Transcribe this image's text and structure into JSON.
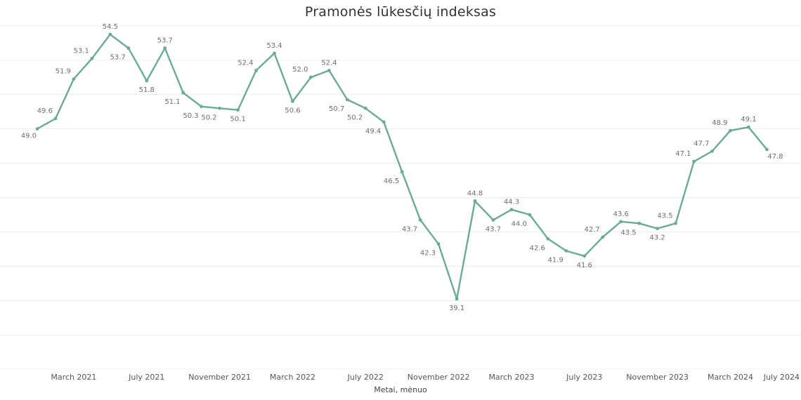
{
  "chart_data": {
    "type": "line",
    "title": "Pramonės lūkesčių indeksas",
    "xlabel": "Metai, mėnuo",
    "ylabel": "",
    "grid": true,
    "legend": "none",
    "line_color": "#6aaa96",
    "ylim": [
      37,
      56
    ],
    "x": [
      "2021-01",
      "2021-02",
      "2021-03",
      "2021-04",
      "2021-05",
      "2021-06",
      "2021-07",
      "2021-08",
      "2021-09",
      "2021-10",
      "2021-11",
      "2021-12",
      "2022-01",
      "2022-02",
      "2022-03",
      "2022-04",
      "2022-05",
      "2022-06",
      "2022-07",
      "2022-08",
      "2022-09",
      "2022-10",
      "2022-11",
      "2022-12",
      "2023-01",
      "2023-02",
      "2023-03",
      "2023-04",
      "2023-05",
      "2023-06",
      "2023-07",
      "2023-08",
      "2023-09",
      "2023-10",
      "2023-11",
      "2023-12",
      "2024-01",
      "2024-02",
      "2024-03",
      "2024-04",
      "2024-05"
    ],
    "series": [
      {
        "values": [
          49.0,
          49.6,
          51.9,
          53.1,
          54.5,
          53.7,
          51.8,
          53.7,
          51.1,
          50.3,
          50.2,
          50.1,
          52.4,
          53.4,
          50.6,
          52.0,
          52.4,
          50.7,
          50.2,
          49.4,
          46.5,
          43.7,
          42.3,
          39.1,
          44.8,
          43.7,
          44.3,
          44.0,
          42.6,
          41.9,
          41.6,
          42.7,
          43.6,
          43.5,
          43.2,
          43.5,
          47.1,
          47.7,
          48.9,
          49.1,
          47.8
        ]
      }
    ],
    "x_ticks": [
      {
        "index": 2,
        "label": "March 2021"
      },
      {
        "index": 6,
        "label": "July 2021"
      },
      {
        "index": 10,
        "label": "November 2021"
      },
      {
        "index": 14,
        "label": "March 2022"
      },
      {
        "index": 18,
        "label": "July 2022"
      },
      {
        "index": 22,
        "label": "November 2022"
      },
      {
        "index": 26,
        "label": "March 2023"
      },
      {
        "index": 30,
        "label": "July 2023"
      },
      {
        "index": 34,
        "label": "November 2023"
      },
      {
        "index": 38,
        "label": "March 2024"
      },
      {
        "index": 42,
        "label": "July 2024"
      }
    ]
  }
}
